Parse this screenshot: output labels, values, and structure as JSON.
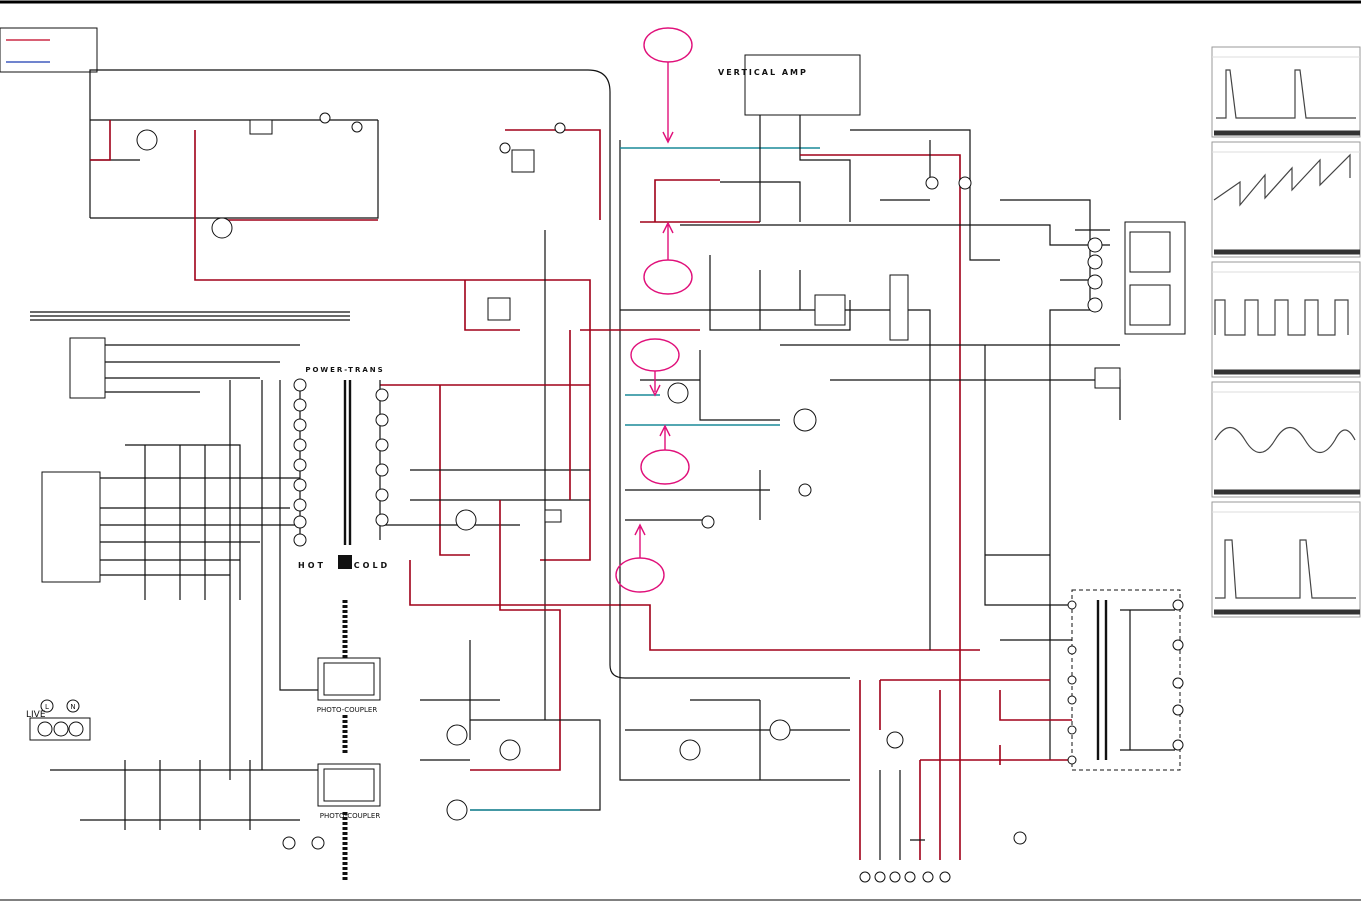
{
  "labels": {
    "vertical_amp": "VERTICAL AMP",
    "power_trans": "POWER-TRANS",
    "hot": "HOT",
    "cold": "COLD",
    "photo_coupler_1": "PHOTO-COUPLER",
    "photo_coupler_2": "PHOTO-COUPLER",
    "live": "LIVE",
    "live_l": "L",
    "live_n": "N"
  }
}
